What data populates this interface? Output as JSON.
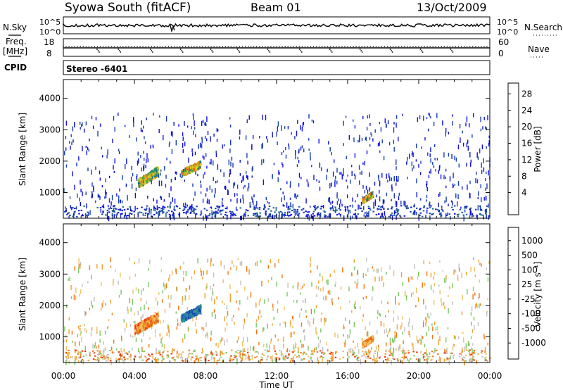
{
  "header": {
    "station": "Syowa South (fitACF)",
    "beam": "Beam 01",
    "date": "13/Oct/2009"
  },
  "noise_panel": {
    "left_label": "N.Sky",
    "right_label": "N.Search",
    "left_ticks": [
      "10^5",
      "10^0"
    ],
    "right_ticks": [
      "10^5",
      "10^0"
    ]
  },
  "freq_panel": {
    "left_label_1": "Freq.",
    "left_label_2": "[MHz]",
    "right_label": "Nave",
    "left_ticks": [
      "18",
      "8"
    ],
    "right_ticks": [
      "60",
      "0"
    ]
  },
  "cpid_label": "CPID",
  "cpid_value": "Stereo -6401",
  "chart_data": [
    {
      "type": "heatmap",
      "name": "power",
      "ylabel": "Slant Range [km]",
      "ylim": [
        180,
        4600
      ],
      "yticks": [
        "4000",
        "3000",
        "2000",
        "1000"
      ],
      "xlabel": "Time UT",
      "xticks": [
        "00:00",
        "04:00",
        "08:00",
        "12:00",
        "16:00",
        "20:00",
        "00:00"
      ],
      "colorbar": {
        "label": "Power [dB]",
        "ticks": [
          "28",
          "24",
          "20",
          "16",
          "12",
          "8",
          "4"
        ],
        "colors": [
          "#1010e0",
          "#1840b0",
          "#1e6a8a",
          "#2a9060",
          "#4ab040",
          "#d8d020",
          "#f0a020",
          "#f07010",
          "#e82a10",
          "#d80000"
        ]
      },
      "features": [
        {
          "t_start": 4.2,
          "t_end": 5.3,
          "range_start": 1200,
          "range_end": 1750,
          "level": 5
        },
        {
          "t_start": 6.6,
          "t_end": 7.7,
          "range_start": 1550,
          "range_end": 1950,
          "level": 6
        },
        {
          "t_start": 16.8,
          "t_end": 17.4,
          "range_start": 700,
          "range_end": 1000,
          "level": 7
        }
      ]
    },
    {
      "type": "heatmap",
      "name": "velocity",
      "ylabel": "Slant Range [km]",
      "ylim": [
        180,
        4600
      ],
      "yticks": [
        "4000",
        "3000",
        "2000",
        "1000"
      ],
      "xlabel": "Time UT",
      "xticks": [
        "00:00",
        "04:00",
        "08:00",
        "12:00",
        "16:00",
        "20:00",
        "00:00"
      ],
      "colorbar": {
        "label": "Velocity [m s⁻¹]",
        "ticks": [
          "1000",
          "500",
          "100",
          "25",
          "-25",
          "-100",
          "-500",
          "-1000"
        ],
        "colors": [
          "#1a3fb8",
          "#2a7ab0",
          "#2f9a8a",
          "#3aaa40",
          "#7ac860",
          "#c0c0c0",
          "#f0c060",
          "#f0a030",
          "#f07818",
          "#e83a10",
          "#d80000"
        ]
      },
      "features": [
        {
          "t_start": 4.0,
          "t_end": 5.3,
          "range_start": 1100,
          "range_end": 1700,
          "level": "approaching"
        },
        {
          "t_start": 6.6,
          "t_end": 7.7,
          "range_start": 1500,
          "range_end": 1950,
          "level": "receding"
        },
        {
          "t_start": 16.8,
          "t_end": 17.4,
          "range_start": 700,
          "range_end": 1000,
          "level": "approaching"
        }
      ]
    }
  ]
}
